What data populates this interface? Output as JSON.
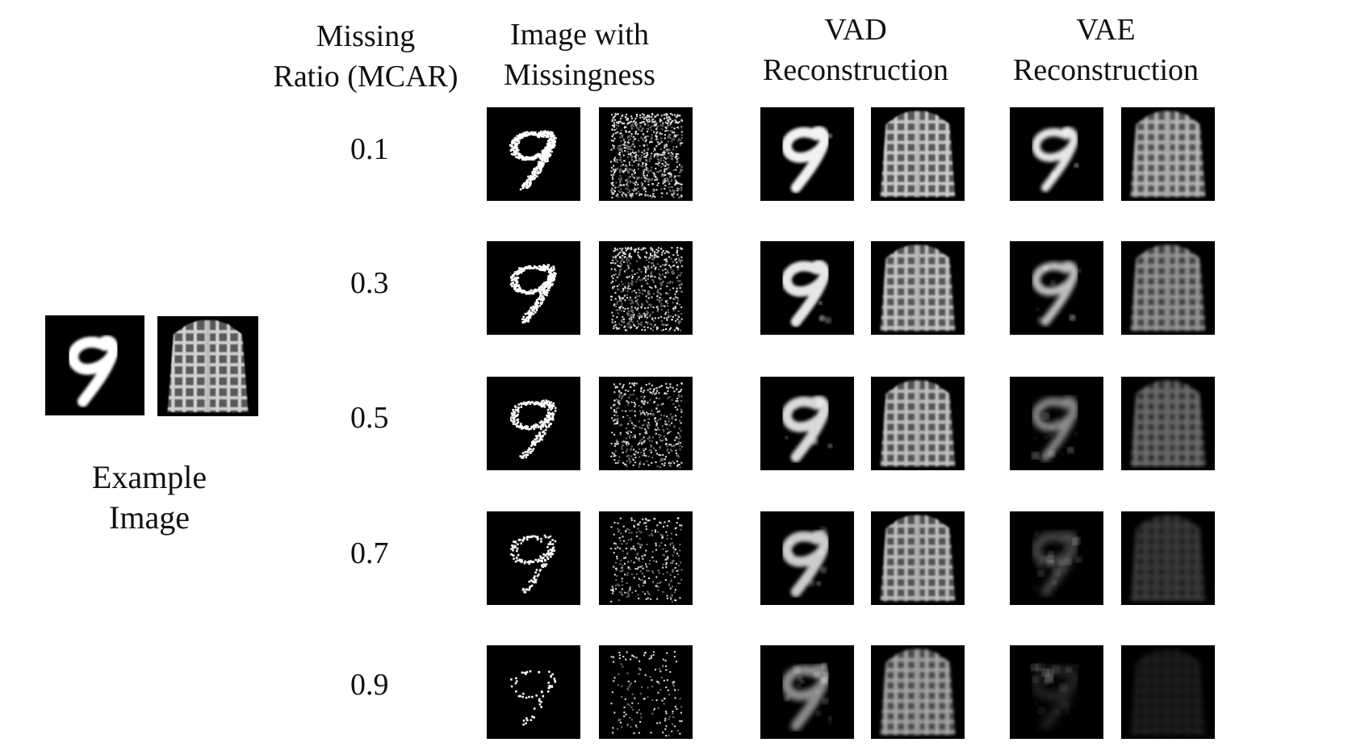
{
  "headers": {
    "missing_ratio": [
      "Missing",
      "Ratio (MCAR)"
    ],
    "image_with_missingness": [
      "Image with",
      "Missingness"
    ],
    "vad": [
      "VAD",
      "Reconstruction"
    ],
    "vae": [
      "VAE",
      "Reconstruction"
    ]
  },
  "example": {
    "caption": [
      "Example",
      "Image"
    ],
    "digit_tile": "mnist-digit-9",
    "shirt_tile": "fashion-plaid-shirt"
  },
  "rows": [
    {
      "ratio": "0.1",
      "missing_fraction": 0.1,
      "vad_quality": 0.95,
      "vae_quality": 0.9
    },
    {
      "ratio": "0.3",
      "missing_fraction": 0.3,
      "vad_quality": 0.9,
      "vae_quality": 0.75
    },
    {
      "ratio": "0.5",
      "missing_fraction": 0.5,
      "vad_quality": 0.85,
      "vae_quality": 0.55
    },
    {
      "ratio": "0.7",
      "missing_fraction": 0.7,
      "vad_quality": 0.8,
      "vae_quality": 0.3
    },
    {
      "ratio": "0.9",
      "missing_fraction": 0.9,
      "vad_quality": 0.55,
      "vae_quality": 0.15
    }
  ]
}
